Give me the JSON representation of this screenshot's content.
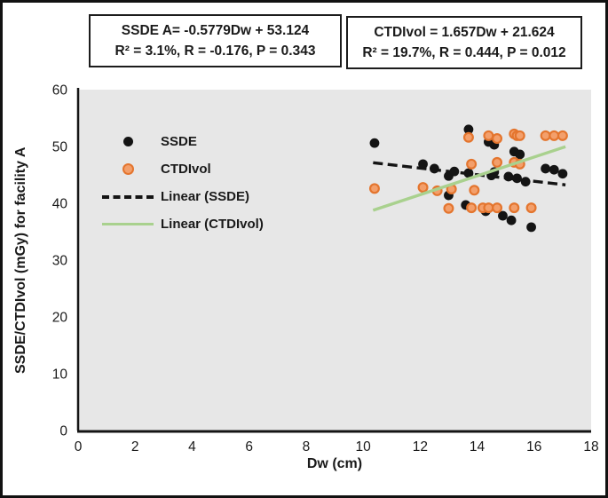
{
  "annotations": {
    "ssde_box": {
      "line1": "SSDE A= -0.5779Dw + 53.124",
      "line2": "R² = 3.1%, R = -0.176, P = 0.343"
    },
    "ctdi_box": {
      "line1": "CTDIvol = 1.657Dw + 21.624",
      "line2": "R² = 19.7%, R = 0.444, P = 0.012"
    }
  },
  "legend": {
    "items": [
      {
        "label": "SSDE",
        "marker": "dot-black"
      },
      {
        "label": "CTDIvol",
        "marker": "dot-orange"
      },
      {
        "label": "Linear (SSDE)",
        "marker": "dashed-black-line"
      },
      {
        "label": "Linear (CTDIvol)",
        "marker": "solid-green-line"
      }
    ]
  },
  "chart_data": {
    "type": "scatter",
    "title": "",
    "xlabel": "Dw (cm)",
    "ylabel": "SSDE/CTDIvol (mGy) for facility A",
    "xlim": [
      0,
      18
    ],
    "ylim": [
      0,
      60
    ],
    "xticks": [
      0,
      2,
      4,
      6,
      8,
      10,
      12,
      14,
      16,
      18
    ],
    "yticks": [
      0,
      10,
      20,
      30,
      40,
      50,
      60
    ],
    "grid": false,
    "plot_bg": "#e7e7e7",
    "axis_color": "#141414",
    "legend_position": "inside-upper-left",
    "series": [
      {
        "name": "SSDE",
        "kind": "scatter",
        "fill": "#141414",
        "stroke": "none",
        "points": [
          [
            10.4,
            50.6
          ],
          [
            12.1,
            46.9
          ],
          [
            12.5,
            46.1
          ],
          [
            13.0,
            44.8
          ],
          [
            13.0,
            41.4
          ],
          [
            13.2,
            45.6
          ],
          [
            13.6,
            39.7
          ],
          [
            13.7,
            53.0
          ],
          [
            13.7,
            45.3
          ],
          [
            14.3,
            38.6
          ],
          [
            14.4,
            50.8
          ],
          [
            14.5,
            44.9
          ],
          [
            14.6,
            50.3
          ],
          [
            14.6,
            45.5
          ],
          [
            14.9,
            37.8
          ],
          [
            15.1,
            44.7
          ],
          [
            15.2,
            37.0
          ],
          [
            15.3,
            49.1
          ],
          [
            15.4,
            44.4
          ],
          [
            15.5,
            48.6
          ],
          [
            15.7,
            43.8
          ],
          [
            15.9,
            35.8
          ],
          [
            16.4,
            46.1
          ],
          [
            16.7,
            45.9
          ],
          [
            17.0,
            45.2
          ]
        ]
      },
      {
        "name": "CTDIvol",
        "kind": "scatter",
        "fill": "#f39f6b",
        "stroke": "#e4752e",
        "points": [
          [
            10.4,
            42.6
          ],
          [
            12.1,
            42.8
          ],
          [
            12.6,
            42.2
          ],
          [
            13.0,
            39.1
          ],
          [
            13.1,
            42.5
          ],
          [
            13.7,
            51.6
          ],
          [
            13.8,
            46.9
          ],
          [
            13.8,
            39.2
          ],
          [
            13.9,
            42.3
          ],
          [
            14.2,
            39.2
          ],
          [
            14.4,
            51.9
          ],
          [
            14.4,
            39.2
          ],
          [
            14.7,
            51.4
          ],
          [
            14.7,
            47.2
          ],
          [
            14.7,
            39.2
          ],
          [
            15.3,
            52.2
          ],
          [
            15.3,
            47.2
          ],
          [
            15.3,
            39.2
          ],
          [
            15.4,
            51.9
          ],
          [
            15.5,
            51.9
          ],
          [
            15.5,
            46.9
          ],
          [
            15.9,
            39.2
          ],
          [
            16.4,
            51.9
          ],
          [
            16.7,
            51.9
          ],
          [
            17.0,
            51.9
          ]
        ]
      },
      {
        "name": "Linear (SSDE)",
        "kind": "trendline",
        "style": "dashed",
        "color": "#141414",
        "slope": -0.5779,
        "intercept": 53.124,
        "x_range": [
          10.35,
          17.1
        ],
        "equation": "SSDE A= -0.5779Dw + 53.124"
      },
      {
        "name": "Linear (CTDIvol)",
        "kind": "trendline",
        "style": "solid",
        "color": "#a9d18e",
        "slope": 1.657,
        "intercept": 21.624,
        "x_range": [
          10.35,
          17.1
        ],
        "equation": "CTDIvol = 1.657Dw + 21.624"
      }
    ]
  }
}
